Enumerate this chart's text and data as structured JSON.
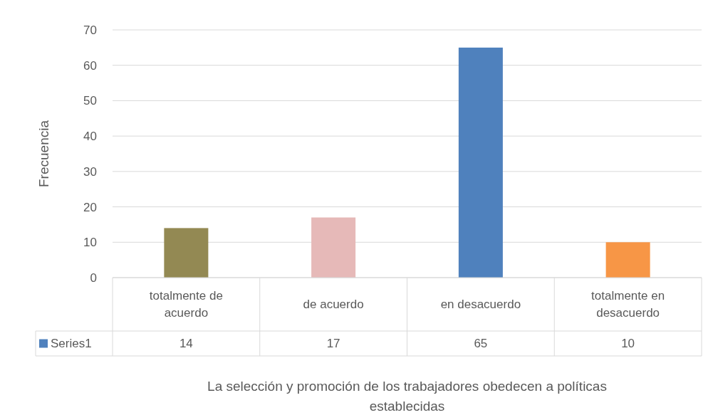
{
  "chart_data": {
    "type": "bar",
    "xlabel": "La selección y promoción de los trabajadores obedecen a políticas establecidas",
    "ylabel": "Frecuencia",
    "categories": [
      "totalmente de acuerdo",
      "de acuerdo",
      "en desacuerdo",
      "totalmente en desacuerdo"
    ],
    "series": [
      {
        "name": "Series1",
        "color": "#4f81bd",
        "colors": [
          "#938953",
          "#e6b9b8",
          "#4f81bd",
          "#f79646"
        ],
        "values": [
          14,
          17,
          65,
          10
        ]
      }
    ],
    "ylim": [
      0,
      70
    ],
    "yticks": [
      0,
      10,
      20,
      30,
      40,
      50,
      60,
      70
    ],
    "grid": "y",
    "data_labels": true
  }
}
